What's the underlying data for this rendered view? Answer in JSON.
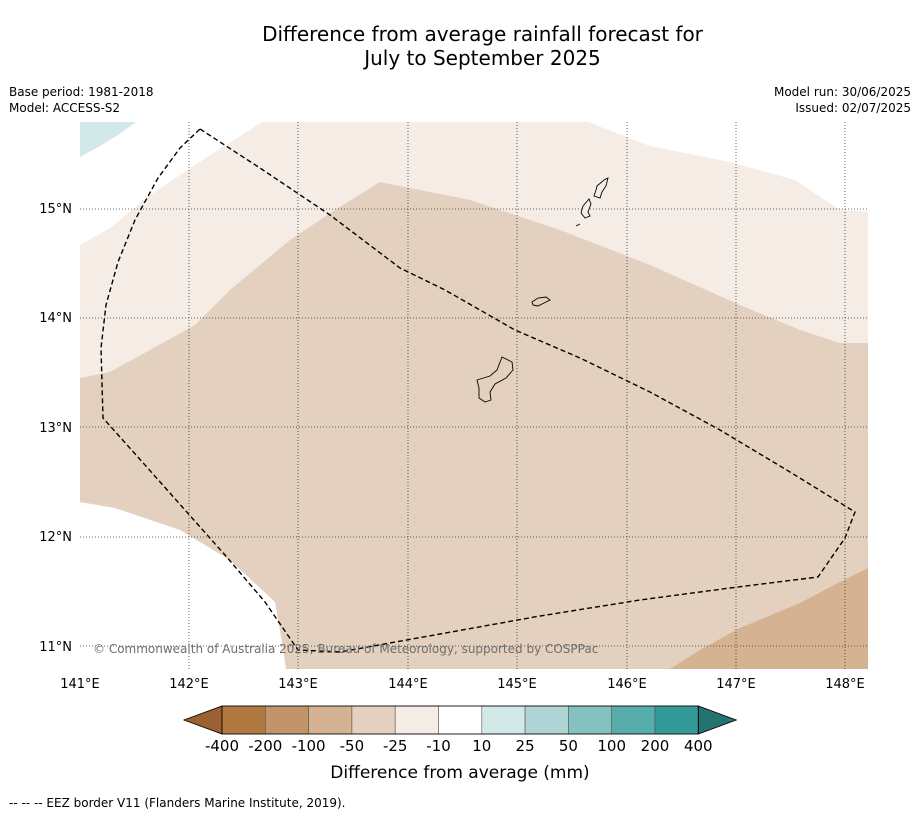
{
  "title": {
    "line1": "Difference from average rainfall forecast for",
    "line2": "July to September 2025"
  },
  "meta_left": {
    "base_period": "Base period: 1981-2018",
    "model": "Model: ACCESS-S2"
  },
  "meta_right": {
    "model_run": "Model run: 30/06/2025",
    "issued": "Issued: 02/07/2025"
  },
  "map": {
    "lat_labels": [
      "15°N",
      "14°N",
      "13°N",
      "12°N",
      "11°N"
    ],
    "lon_labels": [
      "141°E",
      "142°E",
      "143°E",
      "144°E",
      "145°E",
      "146°E",
      "147°E",
      "148°E"
    ],
    "copyright": "© Commonwealth of Australia 2025, Bureau of Meteorology, supported by COSPPac",
    "islands": [
      "guam",
      "rota",
      "tinian-saipan"
    ]
  },
  "colorbar": {
    "ticks": [
      "-400",
      "-200",
      "-100",
      "-50",
      "-25",
      "-10",
      "10",
      "25",
      "50",
      "100",
      "200",
      "400"
    ],
    "colors": [
      "#9a6233",
      "#b0783f",
      "#c2946a",
      "#d5b292",
      "#e3d0be",
      "#f4ece5",
      "#ffffff",
      "#d3e8e8",
      "#afd6d5",
      "#84c1c0",
      "#57adab",
      "#339a97",
      "#26726e"
    ],
    "label": "Difference from average (mm)"
  },
  "legend": {
    "eez": "-- -- -- EEZ border V11 (Flanders Marine Institute, 2019)."
  }
}
